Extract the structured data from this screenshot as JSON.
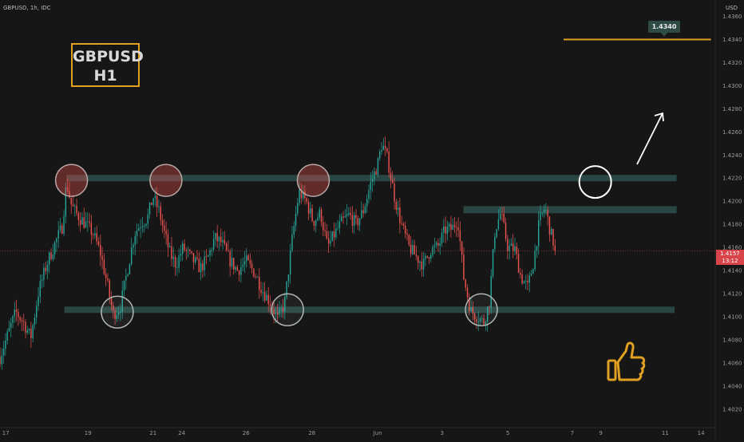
{
  "header": {
    "symbol_line": "GBPUSD, 1h, IDC"
  },
  "currency": "USD",
  "badge": {
    "line1": "GBPUSD",
    "line2": "H1"
  },
  "target": {
    "label": "1.4340",
    "value": 1.434
  },
  "price_tag": {
    "price": "1.4157",
    "countdown": "13:12"
  },
  "colors": {
    "background": "#161616",
    "up": "#26a69a",
    "down": "#ef5350",
    "zone": "#2d4f4a",
    "accent": "#e0a020"
  },
  "icons": [
    "arrow-up-right-icon",
    "thumbs-up-icon"
  ],
  "chart_data": {
    "type": "candlestick",
    "title": "",
    "y_axis": {
      "ylim": [
        1.4004,
        1.437
      ],
      "ticks": [
        1.436,
        1.434,
        1.432,
        1.43,
        1.428,
        1.426,
        1.424,
        1.422,
        1.42,
        1.418,
        1.416,
        1.414,
        1.412,
        1.41,
        1.408,
        1.406,
        1.404,
        1.402
      ],
      "tick_labels": [
        "1.4360",
        "1.4340",
        "1.4320",
        "1.4300",
        "1.4280",
        "1.4260",
        "1.4240",
        "1.4220",
        "1.4200",
        "1.4180",
        "1.4160",
        "1.4140",
        "1.4120",
        "1.4100",
        "1.4080",
        "1.4060",
        "1.4040",
        "1.4020"
      ]
    },
    "x_axis": {
      "tick_labels": [
        "17",
        "19",
        "21",
        "24",
        "26",
        "28",
        "Jun",
        "3",
        "5",
        "7",
        "9",
        "11",
        "14"
      ],
      "tick_positions": [
        0.008,
        0.123,
        0.214,
        0.254,
        0.344,
        0.436,
        0.528,
        0.618,
        0.71,
        0.8,
        0.84,
        0.93,
        0.98
      ]
    },
    "price_path": [
      [
        0.0,
        1.4065
      ],
      [
        0.011,
        1.4085
      ],
      [
        0.022,
        1.4104
      ],
      [
        0.033,
        1.4095
      ],
      [
        0.043,
        1.4082
      ],
      [
        0.054,
        1.4122
      ],
      [
        0.065,
        1.4145
      ],
      [
        0.076,
        1.4162
      ],
      [
        0.087,
        1.4178
      ],
      [
        0.093,
        1.4216
      ],
      [
        0.1,
        1.4196
      ],
      [
        0.108,
        1.4188
      ],
      [
        0.12,
        1.418
      ],
      [
        0.13,
        1.4172
      ],
      [
        0.14,
        1.4156
      ],
      [
        0.15,
        1.4128
      ],
      [
        0.158,
        1.4102
      ],
      [
        0.168,
        1.4108
      ],
      [
        0.178,
        1.414
      ],
      [
        0.188,
        1.4172
      ],
      [
        0.198,
        1.4182
      ],
      [
        0.206,
        1.4185
      ],
      [
        0.214,
        1.4204
      ],
      [
        0.222,
        1.4192
      ],
      [
        0.23,
        1.4172
      ],
      [
        0.238,
        1.4154
      ],
      [
        0.246,
        1.4145
      ],
      [
        0.256,
        1.416
      ],
      [
        0.268,
        1.415
      ],
      [
        0.28,
        1.4142
      ],
      [
        0.29,
        1.415
      ],
      [
        0.3,
        1.4168
      ],
      [
        0.31,
        1.4164
      ],
      [
        0.32,
        1.415
      ],
      [
        0.332,
        1.414
      ],
      [
        0.344,
        1.4148
      ],
      [
        0.356,
        1.4138
      ],
      [
        0.368,
        1.4122
      ],
      [
        0.378,
        1.4112
      ],
      [
        0.388,
        1.4098
      ],
      [
        0.398,
        1.4112
      ],
      [
        0.408,
        1.4165
      ],
      [
        0.418,
        1.4208
      ],
      [
        0.428,
        1.42
      ],
      [
        0.438,
        1.4182
      ],
      [
        0.448,
        1.419
      ],
      [
        0.458,
        1.416
      ],
      [
        0.468,
        1.4172
      ],
      [
        0.478,
        1.4182
      ],
      [
        0.488,
        1.4188
      ],
      [
        0.498,
        1.418
      ],
      [
        0.508,
        1.4192
      ],
      [
        0.518,
        1.4215
      ],
      [
        0.528,
        1.4232
      ],
      [
        0.534,
        1.425
      ],
      [
        0.542,
        1.4236
      ],
      [
        0.552,
        1.4202
      ],
      [
        0.562,
        1.4178
      ],
      [
        0.572,
        1.416
      ],
      [
        0.582,
        1.4152
      ],
      [
        0.592,
        1.4145
      ],
      [
        0.602,
        1.4158
      ],
      [
        0.612,
        1.416
      ],
      [
        0.622,
        1.4175
      ],
      [
        0.632,
        1.4176
      ],
      [
        0.64,
        1.4185
      ],
      [
        0.648,
        1.4135
      ],
      [
        0.658,
        1.4105
      ],
      [
        0.668,
        1.41
      ],
      [
        0.676,
        1.4095
      ],
      [
        0.684,
        1.4112
      ],
      [
        0.692,
        1.4175
      ],
      [
        0.7,
        1.419
      ],
      [
        0.71,
        1.416
      ],
      [
        0.72,
        1.4158
      ],
      [
        0.728,
        1.4135
      ],
      [
        0.738,
        1.4125
      ],
      [
        0.746,
        1.4148
      ],
      [
        0.754,
        1.4182
      ],
      [
        0.762,
        1.4195
      ],
      [
        0.77,
        1.4172
      ],
      [
        0.776,
        1.416
      ]
    ],
    "levels": {
      "resistance": 1.422,
      "inner_resistance": 1.4193,
      "support": 1.4106
    },
    "markers": [
      {
        "kind": "top",
        "x": 0.1,
        "y": 1.4218
      },
      {
        "kind": "top",
        "x": 0.232,
        "y": 1.4218
      },
      {
        "kind": "top",
        "x": 0.438,
        "y": 1.4218
      },
      {
        "kind": "bottom",
        "x": 0.164,
        "y": 1.4104
      },
      {
        "kind": "bottom",
        "x": 0.402,
        "y": 1.4106
      },
      {
        "kind": "bottom",
        "x": 0.673,
        "y": 1.4106
      },
      {
        "kind": "breakout",
        "x": 0.84,
        "y": 1.4218
      }
    ]
  }
}
